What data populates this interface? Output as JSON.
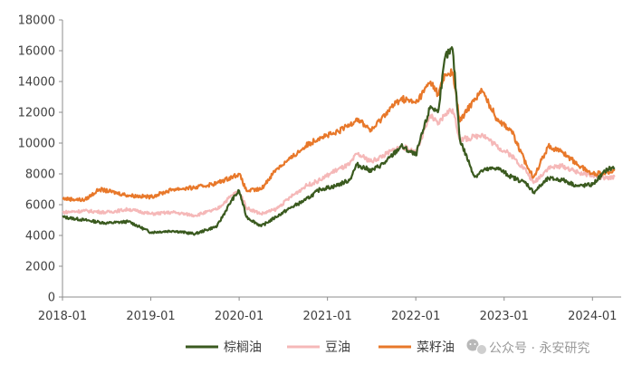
{
  "chart_data": {
    "type": "line",
    "title": "",
    "xlabel": "",
    "ylabel": "",
    "ylim": [
      0,
      18000
    ],
    "yticks": [
      0,
      2000,
      4000,
      6000,
      8000,
      10000,
      12000,
      14000,
      16000,
      18000
    ],
    "xticks": [
      "2018-01",
      "2019-01",
      "2020-01",
      "2021-01",
      "2022-01",
      "2023-01",
      "2024-01"
    ],
    "xlim": [
      "2018-01",
      "2024-04"
    ],
    "grid": false,
    "legend_position": "bottom-right",
    "series": [
      {
        "name": "棕榈油",
        "color": "#3a5a1f",
        "points": [
          [
            "2018-01",
            5200
          ],
          [
            "2018-04",
            5000
          ],
          [
            "2018-07",
            4800
          ],
          [
            "2018-10",
            4900
          ],
          [
            "2019-01",
            4200
          ],
          [
            "2019-04",
            4300
          ],
          [
            "2019-07",
            4100
          ],
          [
            "2019-10",
            4600
          ],
          [
            "2019-12",
            6300
          ],
          [
            "2020-01",
            6900
          ],
          [
            "2020-02",
            5200
          ],
          [
            "2020-04",
            4600
          ],
          [
            "2020-06",
            5200
          ],
          [
            "2020-08",
            5800
          ],
          [
            "2020-10",
            6300
          ],
          [
            "2020-12",
            7000
          ],
          [
            "2021-02",
            7200
          ],
          [
            "2021-04",
            7600
          ],
          [
            "2021-05",
            8600
          ],
          [
            "2021-07",
            8200
          ],
          [
            "2021-09",
            8800
          ],
          [
            "2021-11",
            9800
          ],
          [
            "2022-01",
            9200
          ],
          [
            "2022-03",
            12400
          ],
          [
            "2022-04",
            12000
          ],
          [
            "2022-05",
            15600
          ],
          [
            "2022-06",
            16100
          ],
          [
            "2022-07",
            10200
          ],
          [
            "2022-09",
            7800
          ],
          [
            "2022-10",
            8200
          ],
          [
            "2022-12",
            8400
          ],
          [
            "2023-02",
            7800
          ],
          [
            "2023-04",
            7400
          ],
          [
            "2023-05",
            6800
          ],
          [
            "2023-07",
            7700
          ],
          [
            "2023-09",
            7600
          ],
          [
            "2023-11",
            7200
          ],
          [
            "2024-01",
            7300
          ],
          [
            "2024-03",
            8300
          ],
          [
            "2024-04",
            8400
          ]
        ]
      },
      {
        "name": "豆油",
        "color": "#f5b8b8",
        "points": [
          [
            "2018-01",
            5500
          ],
          [
            "2018-04",
            5600
          ],
          [
            "2018-07",
            5500
          ],
          [
            "2018-10",
            5700
          ],
          [
            "2019-01",
            5400
          ],
          [
            "2019-04",
            5500
          ],
          [
            "2019-07",
            5300
          ],
          [
            "2019-10",
            5700
          ],
          [
            "2019-12",
            6600
          ],
          [
            "2020-01",
            6900
          ],
          [
            "2020-02",
            5800
          ],
          [
            "2020-04",
            5400
          ],
          [
            "2020-06",
            5700
          ],
          [
            "2020-08",
            6500
          ],
          [
            "2020-10",
            7200
          ],
          [
            "2020-12",
            7600
          ],
          [
            "2021-02",
            8200
          ],
          [
            "2021-04",
            8600
          ],
          [
            "2021-05",
            9300
          ],
          [
            "2021-07",
            8800
          ],
          [
            "2021-09",
            9300
          ],
          [
            "2021-11",
            9800
          ],
          [
            "2022-01",
            9400
          ],
          [
            "2022-03",
            11800
          ],
          [
            "2022-04",
            11200
          ],
          [
            "2022-05",
            11900
          ],
          [
            "2022-06",
            12200
          ],
          [
            "2022-07",
            10200
          ],
          [
            "2022-09",
            10400
          ],
          [
            "2022-10",
            10600
          ],
          [
            "2022-12",
            9800
          ],
          [
            "2023-02",
            9200
          ],
          [
            "2023-04",
            8200
          ],
          [
            "2023-05",
            7400
          ],
          [
            "2023-07",
            8400
          ],
          [
            "2023-09",
            8500
          ],
          [
            "2023-11",
            8100
          ],
          [
            "2024-01",
            7900
          ],
          [
            "2024-03",
            7700
          ],
          [
            "2024-04",
            7800
          ]
        ]
      },
      {
        "name": "菜籽油",
        "color": "#e8782a",
        "points": [
          [
            "2018-01",
            6400
          ],
          [
            "2018-04",
            6300
          ],
          [
            "2018-06",
            7000
          ],
          [
            "2018-10",
            6600
          ],
          [
            "2019-01",
            6500
          ],
          [
            "2019-04",
            7000
          ],
          [
            "2019-07",
            7100
          ],
          [
            "2019-10",
            7400
          ],
          [
            "2019-12",
            7800
          ],
          [
            "2020-01",
            8000
          ],
          [
            "2020-02",
            6900
          ],
          [
            "2020-04",
            7000
          ],
          [
            "2020-06",
            8300
          ],
          [
            "2020-08",
            9000
          ],
          [
            "2020-10",
            9800
          ],
          [
            "2020-12",
            10400
          ],
          [
            "2021-02",
            10600
          ],
          [
            "2021-04",
            11200
          ],
          [
            "2021-05",
            11600
          ],
          [
            "2021-07",
            10800
          ],
          [
            "2021-09",
            12000
          ],
          [
            "2021-11",
            12900
          ],
          [
            "2022-01",
            12600
          ],
          [
            "2022-03",
            14000
          ],
          [
            "2022-04",
            13200
          ],
          [
            "2022-05",
            14400
          ],
          [
            "2022-06",
            14600
          ],
          [
            "2022-07",
            11400
          ],
          [
            "2022-09",
            12900
          ],
          [
            "2022-10",
            13400
          ],
          [
            "2022-12",
            11600
          ],
          [
            "2023-02",
            10800
          ],
          [
            "2023-04",
            8600
          ],
          [
            "2023-05",
            7800
          ],
          [
            "2023-07",
            9800
          ],
          [
            "2023-09",
            9400
          ],
          [
            "2023-11",
            8600
          ],
          [
            "2024-01",
            8000
          ],
          [
            "2024-03",
            8100
          ],
          [
            "2024-04",
            8300
          ]
        ]
      }
    ]
  },
  "watermark": {
    "icon": "wechat-icon",
    "text": "公众号 · 永安研究"
  }
}
